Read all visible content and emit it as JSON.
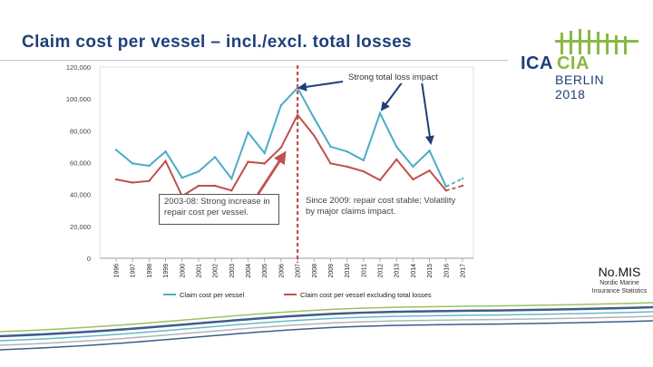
{
  "title": "Claim cost per vessel – incl./excl. total losses",
  "logo": {
    "ica": "ICA",
    "cia": "CIA",
    "city": "BERLIN 2018"
  },
  "branding": {
    "name": "No.MIS",
    "subtitle_line1": "Nordic Marine",
    "subtitle_line2": "Insurance Statistics"
  },
  "notes": {
    "left_box": "2003-08: Strong increase in repair cost per vessel.",
    "right_box": "Since 2009: repair cost stable; Volatility by major claims impact.",
    "top": "Strong total loss impact"
  },
  "colors": {
    "series1": "#4bacc6",
    "series2": "#c0504d",
    "title": "#1f3f79",
    "accent_green": "#8ab842"
  },
  "chart_data": {
    "type": "line",
    "categories": [
      "1996",
      "1997",
      "1998",
      "1999",
      "2000",
      "2001",
      "2002",
      "2003",
      "2004",
      "2005",
      "2006",
      "2007",
      "2008",
      "2009",
      "2010",
      "2011",
      "2012",
      "2013",
      "2014",
      "2015",
      "2016",
      "2017"
    ],
    "ylim": [
      0,
      120000
    ],
    "yticks": [
      "0",
      "20,000",
      "40,000",
      "60,000",
      "80,000",
      "100,000",
      "120,000"
    ],
    "series": [
      {
        "name": "Claim cost per vessel",
        "values": [
          68000,
          59500,
          58000,
          67000,
          50500,
          54500,
          63500,
          50000,
          79000,
          66000,
          96000,
          107000,
          88000,
          70000,
          67000,
          61500,
          91000,
          70000,
          57500,
          67500,
          45000,
          50000
        ]
      },
      {
        "name": "Claim cost per vessel excluding total losses",
        "values": [
          49500,
          47500,
          48500,
          61000,
          39000,
          45500,
          45500,
          42500,
          60500,
          59500,
          69500,
          90000,
          77000,
          59500,
          57500,
          54500,
          49000,
          62000,
          49500,
          55000,
          42500,
          45500
        ]
      }
    ],
    "dashed_from": "2016",
    "marker_year": "2007"
  }
}
